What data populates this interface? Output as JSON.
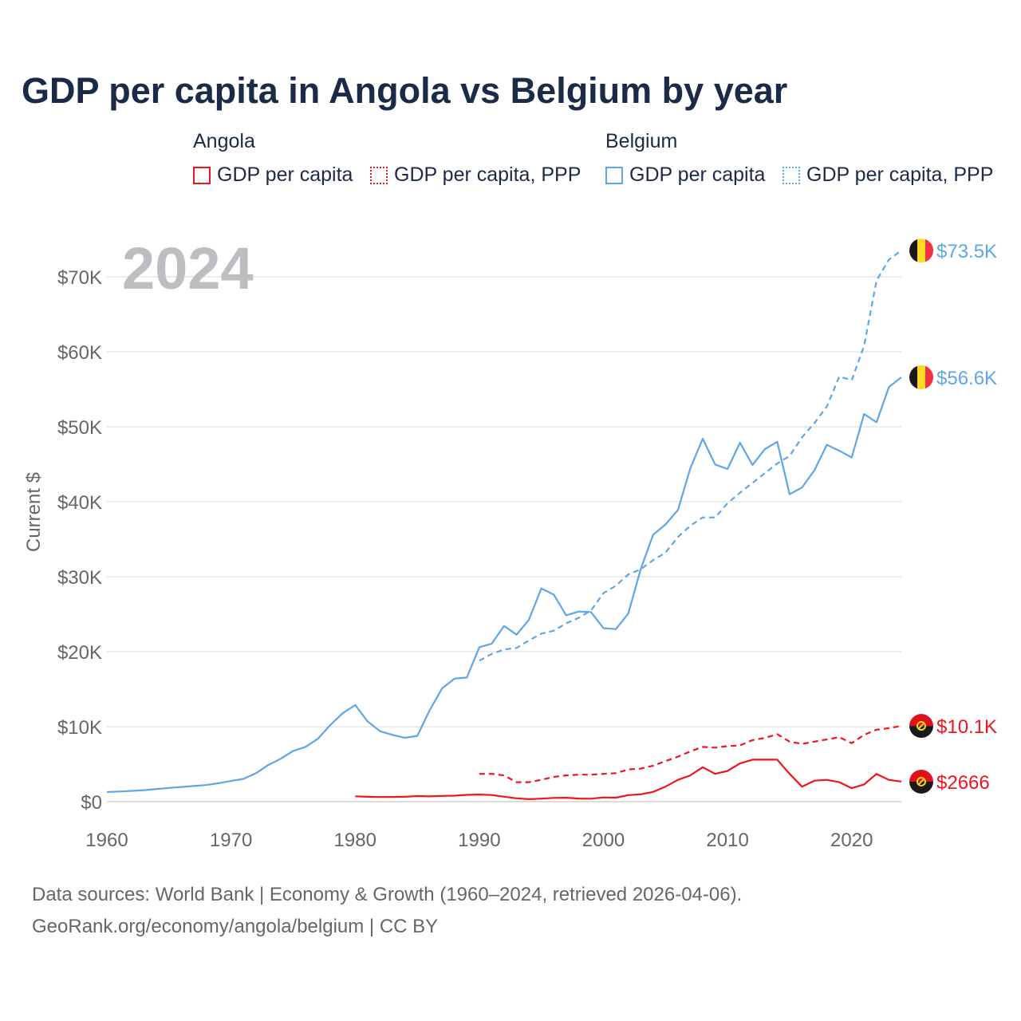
{
  "title": "GDP per capita in Angola vs Belgium by year",
  "legend": {
    "groups": [
      {
        "name": "Angola",
        "items": [
          "GDP per capita",
          "GDP per capita, PPP"
        ]
      },
      {
        "name": "Belgium",
        "items": [
          "GDP per capita",
          "GDP per capita, PPP"
        ]
      }
    ]
  },
  "footer": {
    "line1": "Data sources: World Bank | Economy & Growth (1960–2024, retrieved 2026-04-06).",
    "line2": "GeoRank.org/economy/angola/belgium | CC BY"
  },
  "colors": {
    "angola": "#f0141e",
    "belgium": "#5ea6e8",
    "grid": "#e6e6e6",
    "axis_text": "#666666",
    "year": "#bdbdc2"
  },
  "chart_data": {
    "type": "line",
    "title": "GDP per capita in Angola vs Belgium by year",
    "current_year_label": "2024",
    "xlabel": "",
    "ylabel": "Current $",
    "xlim": [
      1960,
      2024
    ],
    "ylim": [
      0,
      75000
    ],
    "x_ticks": [
      1960,
      1970,
      1980,
      1990,
      2000,
      2010,
      2020
    ],
    "y_ticks": [
      {
        "value": 0,
        "label": "$0"
      },
      {
        "value": 10000,
        "label": "$10K"
      },
      {
        "value": 20000,
        "label": "$20K"
      },
      {
        "value": 30000,
        "label": "$30K"
      },
      {
        "value": 40000,
        "label": "$40K"
      },
      {
        "value": 50000,
        "label": "$50K"
      },
      {
        "value": 60000,
        "label": "$60K"
      },
      {
        "value": 70000,
        "label": "$70K"
      }
    ],
    "grid": true,
    "series": [
      {
        "name": "Belgium GDP per capita",
        "country": "belgium",
        "dashed": false,
        "start": 1960,
        "end_label": "$56.6K",
        "values": [
          1273,
          1350,
          1438,
          1532,
          1694,
          1835,
          1957,
          2085,
          2210,
          2457,
          2754,
          3034,
          3784,
          4880,
          5723,
          6764,
          7298,
          8397,
          10228,
          11795,
          12882,
          10702,
          9392,
          8908,
          8523,
          8767,
          12183,
          15109,
          16403,
          16548,
          20601,
          21069,
          23424,
          22262,
          24267,
          28441,
          27607,
          24846,
          25352,
          25290,
          23133,
          23014,
          25079,
          30980,
          35598,
          36964,
          38898,
          44450,
          48400,
          44960,
          44360,
          47870,
          44900,
          47000,
          48000,
          41000,
          41900,
          44200,
          47600,
          46800,
          45900,
          51700,
          50600,
          55300,
          56600
        ]
      },
      {
        "name": "Belgium GDP per capita, PPP",
        "country": "belgium",
        "dashed": true,
        "start": 1990,
        "end_label": "$73.5K",
        "values": [
          18800,
          19700,
          20300,
          20500,
          21500,
          22400,
          22800,
          23800,
          24500,
          25500,
          27800,
          28800,
          30300,
          31000,
          32200,
          33200,
          35300,
          36800,
          37900,
          37900,
          39800,
          41200,
          42500,
          43800,
          45100,
          46100,
          48600,
          50500,
          52700,
          56700,
          56200,
          60800,
          69500,
          72300,
          73500
        ]
      },
      {
        "name": "Angola GDP per capita, PPP",
        "country": "angola",
        "dashed": true,
        "start": 1990,
        "end_label": "$10.1K",
        "values": [
          3700,
          3700,
          3500,
          2600,
          2600,
          2900,
          3300,
          3500,
          3600,
          3600,
          3700,
          3800,
          4300,
          4400,
          4800,
          5400,
          6000,
          6700,
          7300,
          7200,
          7400,
          7500,
          8200,
          8500,
          9000,
          8000,
          7700,
          8000,
          8300,
          8600,
          7800,
          8900,
          9600,
          9800,
          10100
        ]
      },
      {
        "name": "Angola GDP per capita",
        "country": "angola",
        "dashed": false,
        "start": 1980,
        "end_label": "$2666",
        "values": [
          710,
          650,
          620,
          630,
          650,
          750,
          700,
          770,
          800,
          900,
          950,
          880,
          660,
          450,
          330,
          400,
          500,
          520,
          420,
          390,
          560,
          530,
          870,
          980,
          1300,
          2000,
          2900,
          3500,
          4600,
          3700,
          4100,
          5100,
          5600,
          5600,
          5600,
          3700,
          2000,
          2800,
          2900,
          2600,
          1800,
          2300,
          3700,
          2900,
          2666
        ]
      }
    ]
  }
}
